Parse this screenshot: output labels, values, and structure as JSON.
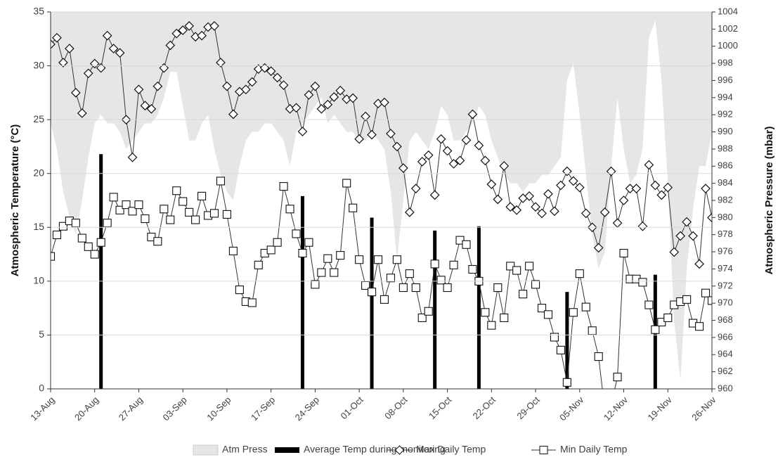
{
  "chart_data": {
    "type": "combo",
    "y_label": "Atmospheric Temperature (°C)",
    "y2_label": "Atmospheric Pressure (mbar)",
    "categories": [
      "13-Aug",
      null,
      null,
      null,
      null,
      null,
      null,
      "20-Aug",
      null,
      null,
      null,
      null,
      null,
      null,
      "27-Aug",
      null,
      null,
      null,
      null,
      null,
      null,
      "03-Sep",
      null,
      null,
      null,
      null,
      null,
      null,
      "10-Sep",
      null,
      null,
      null,
      null,
      null,
      null,
      "17-Sep",
      null,
      null,
      null,
      null,
      null,
      null,
      "24-Sep",
      null,
      null,
      null,
      null,
      null,
      null,
      "01-Oct",
      null,
      null,
      null,
      null,
      null,
      null,
      "08-Oct",
      null,
      null,
      null,
      null,
      null,
      null,
      "15-Oct",
      null,
      null,
      null,
      null,
      null,
      null,
      "22-Oct",
      null,
      null,
      null,
      null,
      null,
      null,
      "29-Oct",
      null,
      null,
      null,
      null,
      null,
      null,
      "05-Nov",
      null,
      null,
      null,
      null,
      null,
      null,
      "12-Nov",
      null,
      null,
      null,
      null,
      null,
      null,
      "19-Nov",
      null,
      null,
      null,
      null,
      null,
      null,
      "26-Nov"
    ],
    "ylim": [
      0,
      35
    ],
    "yticks": [
      0,
      5,
      10,
      15,
      20,
      25,
      30,
      35
    ],
    "y2lim": [
      960,
      1004
    ],
    "y2ticks": [
      960,
      962,
      964,
      966,
      968,
      970,
      972,
      974,
      976,
      978,
      980,
      982,
      984,
      986,
      988,
      990,
      992,
      994,
      996,
      998,
      1000,
      1002,
      1004
    ],
    "grid": true,
    "legend": "bottom",
    "series": [
      {
        "name": "Atm Press",
        "kind": "area",
        "axis": "y2",
        "color": "#e6e6e6",
        "values": [
          991,
          988,
          983,
          980,
          978,
          982,
          987,
          991,
          992,
          991,
          991,
          990,
          988,
          989,
          990,
          991,
          991,
          992,
          994,
          997,
          997,
          993,
          989,
          989,
          991,
          992,
          988,
          985,
          983,
          982,
          986,
          989,
          990,
          990,
          991,
          991,
          990,
          989,
          986,
          990,
          991,
          992,
          993,
          994,
          991,
          992,
          991,
          990,
          990,
          989,
          989,
          990,
          989,
          988,
          983,
          975,
          982,
          989,
          990,
          989,
          988,
          990,
          993,
          992,
          989,
          989,
          990,
          991,
          993,
          992,
          989,
          987,
          985,
          984,
          984,
          983,
          984,
          984,
          985,
          985,
          986,
          987,
          996,
          998,
          992,
          985,
          978,
          974,
          976,
          986,
          994,
          988,
          984,
          985,
          988,
          1001,
          1003,
          996,
          984,
          968,
          961,
          974,
          981,
          986,
          986,
          990
        ]
      },
      {
        "name": "Average Temp during monitoring",
        "kind": "bar",
        "color": "#000000",
        "values": [
          null,
          null,
          null,
          null,
          null,
          null,
          null,
          null,
          21.8,
          null,
          null,
          null,
          null,
          null,
          null,
          null,
          null,
          null,
          null,
          null,
          null,
          null,
          null,
          null,
          null,
          null,
          null,
          null,
          null,
          null,
          null,
          null,
          null,
          null,
          null,
          null,
          null,
          null,
          null,
          null,
          17.9,
          null,
          null,
          null,
          null,
          null,
          null,
          null,
          null,
          null,
          null,
          15.9,
          null,
          null,
          null,
          null,
          null,
          null,
          null,
          null,
          null,
          14.7,
          null,
          null,
          null,
          null,
          null,
          null,
          15.1,
          null,
          null,
          null,
          null,
          null,
          null,
          null,
          null,
          null,
          null,
          null,
          null,
          null,
          9.0,
          null,
          null,
          null,
          null,
          null,
          null,
          null,
          null,
          null,
          null,
          null,
          null,
          null,
          10.6,
          null,
          null,
          null,
          null,
          null,
          null,
          null,
          null,
          null
        ]
      },
      {
        "name": "Max Daily Temp",
        "kind": "line",
        "marker": "diamond",
        "color": "#333333",
        "values": [
          32.0,
          32.6,
          30.3,
          31.6,
          27.5,
          25.6,
          29.3,
          30.2,
          29.8,
          32.8,
          31.6,
          31.2,
          25.0,
          21.5,
          27.8,
          26.3,
          26.0,
          28.1,
          29.8,
          31.9,
          33.0,
          33.3,
          33.7,
          32.7,
          32.8,
          33.6,
          33.7,
          30.3,
          28.1,
          25.5,
          27.6,
          27.8,
          28.5,
          29.7,
          29.8,
          29.5,
          28.9,
          28.2,
          26.0,
          26.1,
          23.9,
          27.3,
          28.1,
          26.0,
          26.4,
          27.1,
          27.7,
          26.9,
          27.0,
          23.2,
          25.3,
          23.6,
          26.5,
          26.6,
          23.7,
          22.5,
          20.5,
          16.4,
          18.6,
          21.1,
          21.7,
          18.0,
          23.2,
          22.1,
          20.9,
          21.2,
          23.1,
          25.5,
          22.6,
          21.2,
          19.0,
          17.6,
          20.7,
          16.9,
          16.6,
          17.7,
          17.9,
          16.9,
          16.3,
          18.1,
          16.5,
          18.9,
          20.2,
          19.3,
          18.7,
          16.3,
          15.0,
          13.1,
          16.4,
          20.2,
          15.4,
          17.5,
          18.6,
          18.6,
          15.1,
          20.8,
          18.9,
          18.0,
          18.7,
          12.7,
          14.2,
          15.5,
          14.2,
          11.6,
          18.6,
          15.9
        ]
      },
      {
        "name": "Min Daily Temp",
        "kind": "line",
        "marker": "square",
        "color": "#333333",
        "values": [
          12.3,
          14.3,
          15.1,
          15.6,
          15.4,
          14.0,
          13.2,
          12.5,
          13.6,
          15.4,
          17.8,
          16.6,
          17.1,
          16.5,
          17.1,
          15.8,
          14.1,
          13.7,
          16.7,
          15.7,
          18.4,
          17.4,
          16.4,
          15.7,
          17.9,
          16.1,
          16.3,
          19.3,
          16.2,
          12.8,
          9.2,
          8.1,
          8.0,
          11.5,
          12.6,
          12.9,
          13.6,
          18.8,
          16.7,
          14.4,
          12.6,
          13.6,
          9.7,
          10.8,
          12.1,
          10.8,
          12.4,
          19.1,
          16.8,
          12.0,
          9.6,
          9.0,
          12.0,
          8.3,
          10.3,
          12.0,
          9.4,
          10.7,
          9.4,
          6.6,
          7.2,
          11.6,
          10.1,
          9.4,
          11.5,
          13.8,
          13.4,
          11.1,
          10.0,
          7.1,
          5.9,
          9.4,
          6.6,
          11.4,
          11.0,
          8.8,
          11.4,
          9.7,
          7.5,
          6.9,
          4.8,
          3.6,
          0.6,
          7.1,
          10.7,
          7.6,
          5.4,
          3.0,
          -2.0,
          -1.5,
          1.1,
          12.6,
          10.2,
          10.2,
          9.9,
          7.8,
          5.5,
          6.2,
          6.6,
          7.8,
          8.1,
          8.3,
          6.1,
          5.8,
          8.9,
          8.2
        ]
      }
    ]
  }
}
